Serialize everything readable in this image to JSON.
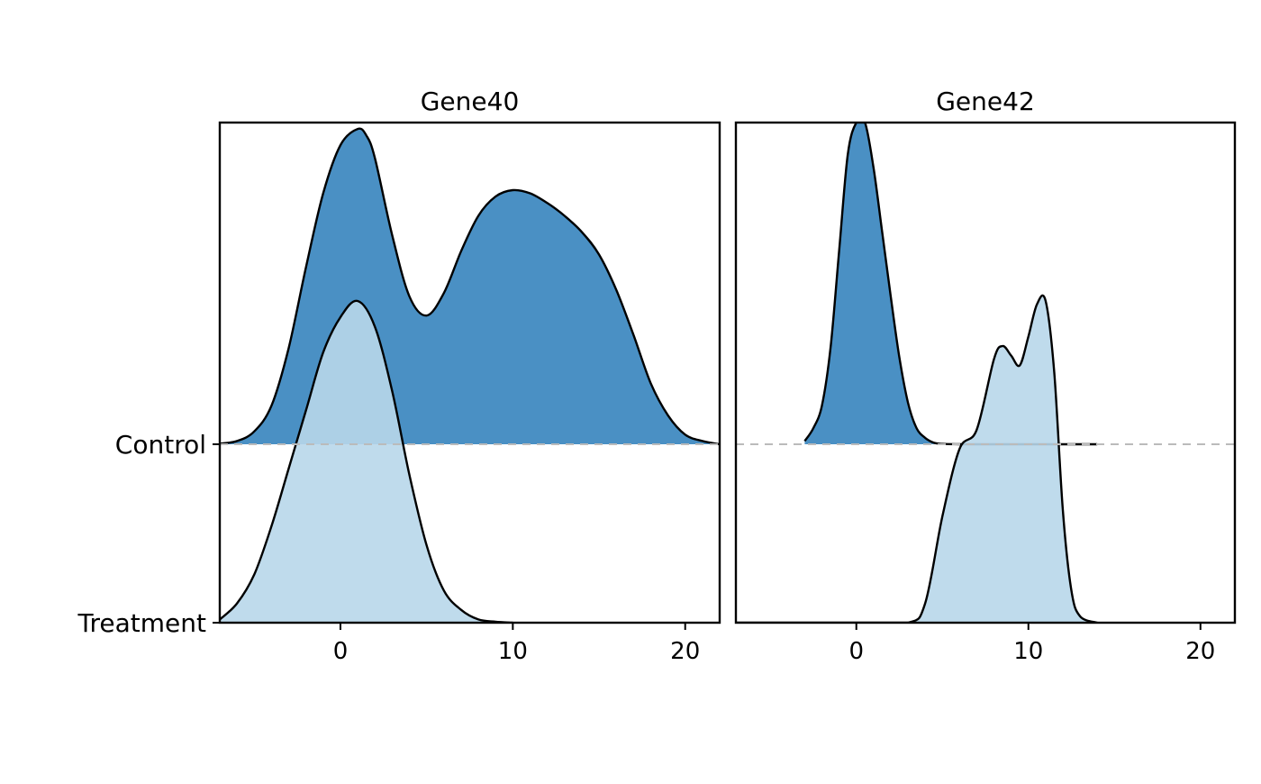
{
  "chart_data": {
    "type": "ridgeline",
    "groups": [
      "Control",
      "Treatment"
    ],
    "xlim": [
      -7,
      22
    ],
    "xticks": [
      0,
      10,
      20
    ],
    "grid": false,
    "colors": {
      "Control": "#4a90c4",
      "Treatment": "#b8d7ea",
      "baseline": "#bbbbbb",
      "outline": "#000000"
    },
    "panels": [
      {
        "title": "Gene40",
        "series": [
          {
            "name": "Control",
            "x": [
              -7,
              -6,
              -5,
              -4,
              -3,
              -2,
              -1,
              0,
              1,
              1.5,
              2,
              3,
              4,
              5,
              6,
              7,
              8,
              9,
              10,
              11,
              12,
              13,
              14,
              15,
              16,
              17,
              18,
              19,
              20,
              21,
              22
            ],
            "density": [
              0.002,
              0.01,
              0.04,
              0.12,
              0.3,
              0.55,
              0.78,
              0.93,
              0.98,
              0.96,
              0.89,
              0.65,
              0.46,
              0.4,
              0.47,
              0.6,
              0.71,
              0.77,
              0.79,
              0.78,
              0.75,
              0.71,
              0.66,
              0.59,
              0.48,
              0.34,
              0.19,
              0.09,
              0.03,
              0.01,
              0.0
            ]
          },
          {
            "name": "Treatment",
            "x": [
              -7,
              -6,
              -5,
              -4,
              -3,
              -2,
              -1,
              0,
              1,
              2,
              3,
              4,
              5,
              6,
              7,
              8,
              9,
              10
            ],
            "density": [
              0.01,
              0.06,
              0.15,
              0.3,
              0.48,
              0.66,
              0.84,
              0.95,
              1.0,
              0.92,
              0.72,
              0.46,
              0.24,
              0.1,
              0.04,
              0.01,
              0.003,
              0.0
            ]
          }
        ]
      },
      {
        "title": "Gene42",
        "series": [
          {
            "name": "Control",
            "x": [
              -3,
              -2.5,
              -2,
              -1.5,
              -1,
              -0.5,
              0,
              0.5,
              1,
              1.5,
              2,
              2.5,
              3,
              3.5,
              4,
              4.5,
              5,
              6,
              8,
              10,
              12,
              14
            ],
            "density": [
              0.01,
              0.05,
              0.12,
              0.3,
              0.6,
              0.9,
              1.0,
              1.0,
              0.86,
              0.66,
              0.46,
              0.27,
              0.13,
              0.05,
              0.02,
              0.005,
              0.001,
              0.0,
              0.0,
              0.0,
              0.0,
              0.0
            ]
          },
          {
            "name": "Treatment",
            "x": [
              -7,
              0,
              3,
              4,
              5,
              6,
              7,
              8,
              8.5,
              9,
              9.5,
              10,
              10.5,
              11,
              11.5,
              12,
              12.5,
              13,
              14
            ],
            "density": [
              0.0,
              0.0,
              0.0,
              0.06,
              0.33,
              0.54,
              0.6,
              0.82,
              0.86,
              0.83,
              0.8,
              0.89,
              0.99,
              1.0,
              0.78,
              0.35,
              0.1,
              0.02,
              0.0
            ]
          }
        ]
      }
    ]
  }
}
